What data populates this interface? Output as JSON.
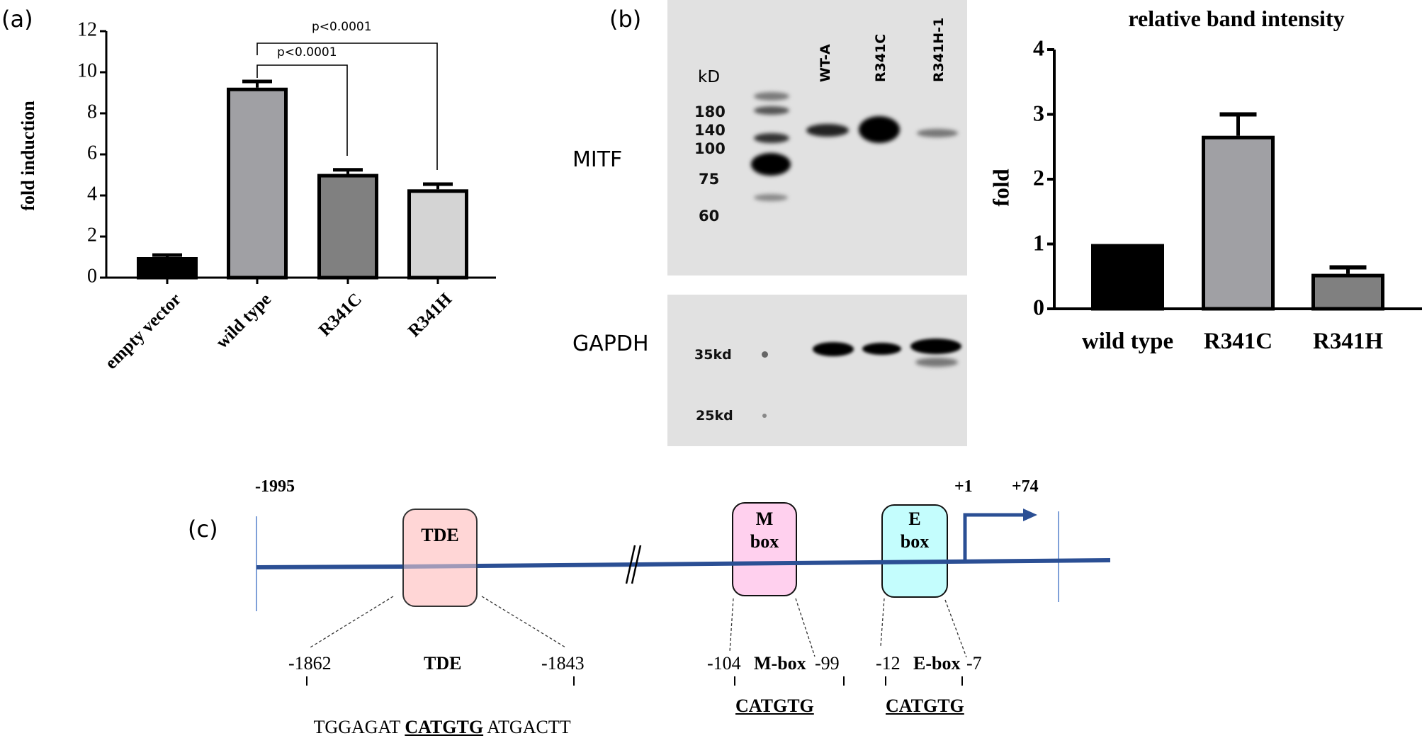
{
  "panels": {
    "a_label": "(a)",
    "b_label": "(b)",
    "c_label": "(c)"
  },
  "blot": {
    "mitf_label": "MITF",
    "gapdh_label": "GAPDH",
    "kd_header": "kD",
    "markers_top": [
      "180",
      "140",
      "100",
      "75",
      "60"
    ],
    "markers_bottom": [
      "35kd",
      "25kd"
    ],
    "lanes": [
      "WT-A",
      "R341C",
      "R341H-1"
    ],
    "background": "#e1e1e1"
  },
  "chart_data": [
    {
      "type": "bar",
      "id": "fold_induction",
      "title": "",
      "xlabel": "",
      "ylabel": "fold induction",
      "ylim": [
        0,
        12
      ],
      "yticks": [
        "0",
        "2",
        "4",
        "6",
        "8",
        "10",
        "12"
      ],
      "categories": [
        "empty vector",
        "wild type",
        "R341C",
        "R341H"
      ],
      "values": [
        1.0,
        9.25,
        5.05,
        4.3
      ],
      "error_upper": [
        1.1,
        9.55,
        5.25,
        4.55
      ],
      "colors": [
        "#000000",
        "#a0a0a4",
        "#808080",
        "#d4d4d4"
      ],
      "annotations": [
        {
          "text": "p<0.0001",
          "from": "wild type",
          "to": "R341C"
        },
        {
          "text": "p<0.0001",
          "from": "wild type",
          "to": "R341H"
        }
      ],
      "grid": false,
      "legend": "none"
    },
    {
      "type": "bar",
      "id": "relative_band_intensity",
      "title": "relative band intensity",
      "xlabel": "",
      "ylabel": "fold",
      "ylim": [
        0,
        4
      ],
      "yticks": [
        "0",
        "1",
        "2",
        "3",
        "4"
      ],
      "categories": [
        "wild type",
        "R341C",
        "R341H"
      ],
      "values": [
        1.0,
        2.67,
        0.54
      ],
      "error_upper": [
        1.0,
        3.0,
        0.64
      ],
      "colors": [
        "#000000",
        "#a0a0a4",
        "#808080"
      ],
      "grid": false,
      "legend": "none"
    }
  ],
  "promoter": {
    "start_label": "-1995",
    "tss_label": "+1",
    "end_label": "+74",
    "line_color": "#2b4f94",
    "elements": [
      {
        "name": "TDE",
        "box_text": "TDE",
        "color": "#ffcfcf"
      },
      {
        "name": "M box",
        "box_text_1": "M",
        "box_text_2": "box",
        "color": "#ffd0ee"
      },
      {
        "name": "E box",
        "box_text_1": "E",
        "box_text_2": "box",
        "color": "#c4fdfd"
      }
    ],
    "tde_detail": {
      "left_pos": "-1862",
      "title": "TDE",
      "right_pos": "-1843",
      "seq_prefix": "TGGAGAT ",
      "seq_core": "CATGTG",
      "seq_suffix": " ATGACTT"
    },
    "mbox_detail": {
      "left_pos": "-104",
      "title": "M-box",
      "right_pos": "-99",
      "seq_core": "CATGTG"
    },
    "ebox_detail": {
      "left_pos": "-12",
      "title": "E-box",
      "right_pos": "-7",
      "seq_core": "CATGTG"
    }
  }
}
